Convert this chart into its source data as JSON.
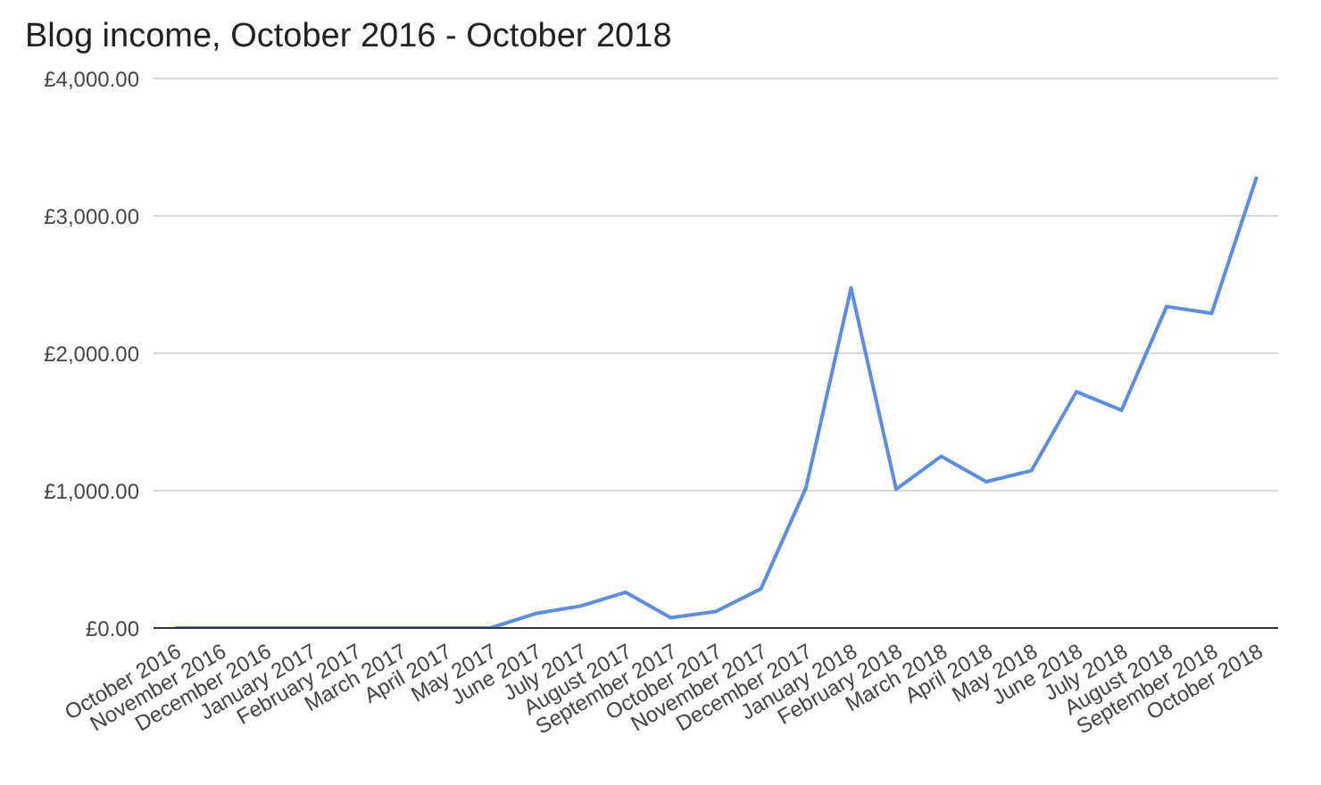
{
  "chart_data": {
    "type": "line",
    "title": "Blog income, October 2016 - October 2018",
    "categories": [
      "October 2016",
      "November 2016",
      "December 2016",
      "January 2017",
      "February 2017",
      "March 2017",
      "April 2017",
      "May 2017",
      "June 2017",
      "July 2017",
      "August 2017",
      "September 2017",
      "October 2017",
      "November 2017",
      "December 2017",
      "January 2018",
      "February 2018",
      "March 2018",
      "April 2018",
      "May 2018",
      "June 2018",
      "July 2018",
      "August 2018",
      "September 2018",
      "October 2018"
    ],
    "series": [
      {
        "color": "#5a8ee6",
        "values": [
          0,
          0,
          0,
          0,
          0,
          0,
          0,
          0,
          105,
          160,
          260,
          75,
          120,
          285,
          1020,
          2475,
          1010,
          1250,
          1065,
          1145,
          1720,
          1585,
          2340,
          2290,
          3285
        ]
      }
    ],
    "ylim": [
      0,
      4000
    ],
    "yticks": [
      {
        "value": 0,
        "label": "£0.00"
      },
      {
        "value": 1000,
        "label": "£1,000.00"
      },
      {
        "value": 2000,
        "label": "£2,000.00"
      },
      {
        "value": 3000,
        "label": "£3,000.00"
      },
      {
        "value": 4000,
        "label": "£4,000.00"
      }
    ],
    "grid": "y",
    "legend": false,
    "marker": "none",
    "line_style": "solid"
  }
}
